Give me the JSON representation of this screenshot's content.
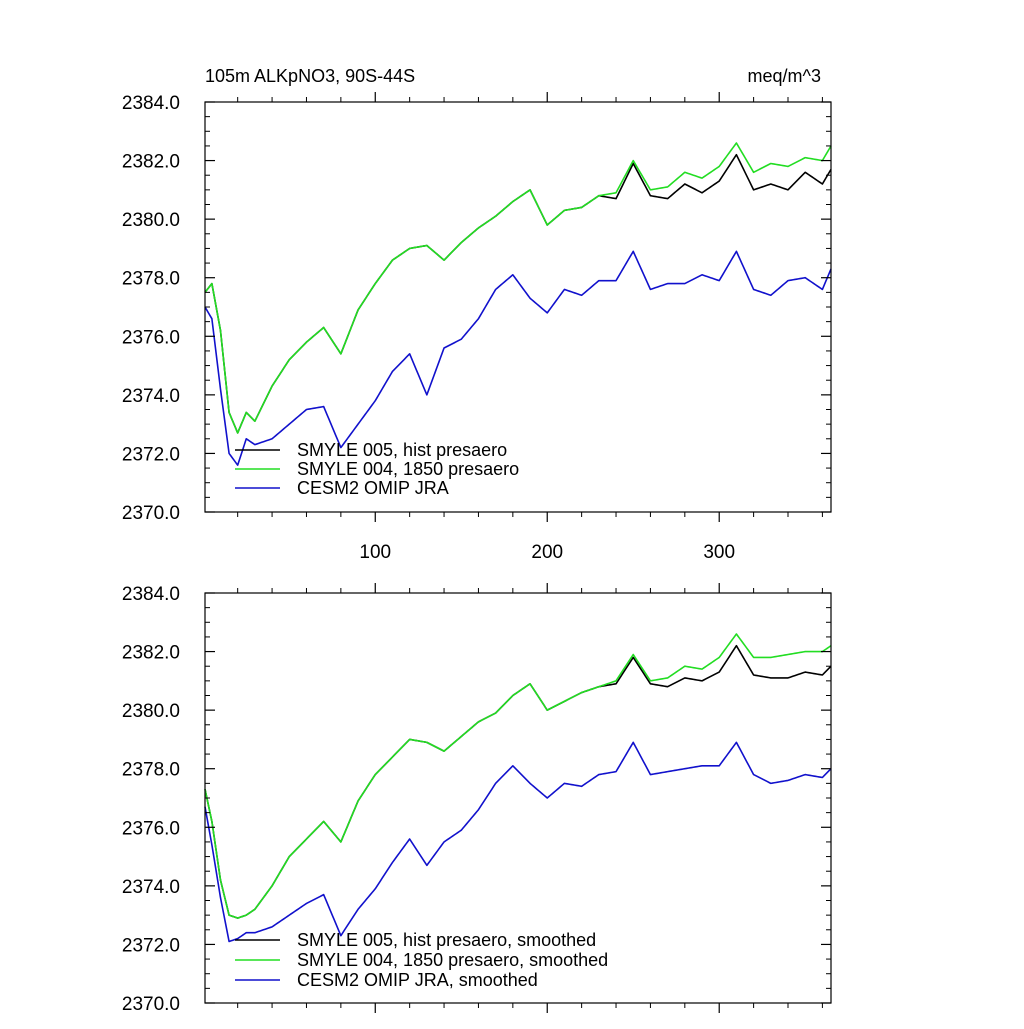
{
  "figure": {
    "title_left": "105m ALKpNO3, 90S-44S",
    "title_right": "meq/m^3"
  },
  "chart_data": [
    {
      "type": "line",
      "title": "105m ALKpNO3, 90S-44S",
      "units": "meq/m^3",
      "xlim": [
        1,
        365
      ],
      "ylim": [
        2370.0,
        2384.0
      ],
      "x_ticks": [
        100,
        200,
        300
      ],
      "x_tick_labels": [
        "100",
        "200",
        "300"
      ],
      "y_ticks": [
        2370.0,
        2372.0,
        2374.0,
        2376.0,
        2378.0,
        2380.0,
        2382.0,
        2384.0
      ],
      "y_tick_labels": [
        "2370.0",
        "2372.0",
        "2374.0",
        "2376.0",
        "2378.0",
        "2380.0",
        "2382.0",
        "2384.0"
      ],
      "legend_position": "bottom-left",
      "grid": false,
      "x": [
        1,
        5,
        10,
        15,
        20,
        25,
        30,
        40,
        50,
        60,
        70,
        80,
        90,
        100,
        110,
        120,
        130,
        140,
        150,
        160,
        170,
        180,
        190,
        200,
        210,
        220,
        230,
        240,
        250,
        260,
        270,
        280,
        290,
        300,
        310,
        320,
        330,
        340,
        350,
        360,
        365
      ],
      "series": [
        {
          "name": "SMYLE 005, hist presaero",
          "color": "#000000",
          "values": [
            2377.5,
            2377.8,
            2376.2,
            2373.4,
            2372.7,
            2373.4,
            2373.1,
            2374.3,
            2375.2,
            2375.8,
            2376.3,
            2375.4,
            2376.9,
            2377.8,
            2378.6,
            2379.0,
            2379.1,
            2378.6,
            2379.2,
            2379.7,
            2380.1,
            2380.6,
            2381.0,
            2379.8,
            2380.3,
            2380.4,
            2380.8,
            2380.7,
            2381.9,
            2380.8,
            2380.7,
            2381.2,
            2380.9,
            2381.3,
            2382.2,
            2381.0,
            2381.2,
            2381.0,
            2381.6,
            2381.2,
            2381.7
          ]
        },
        {
          "name": "SMYLE 004, 1850 presaero",
          "color": "#22dd22",
          "values": [
            2377.5,
            2377.8,
            2376.2,
            2373.4,
            2372.7,
            2373.4,
            2373.1,
            2374.3,
            2375.2,
            2375.8,
            2376.3,
            2375.4,
            2376.9,
            2377.8,
            2378.6,
            2379.0,
            2379.1,
            2378.6,
            2379.2,
            2379.7,
            2380.1,
            2380.6,
            2381.0,
            2379.8,
            2380.3,
            2380.4,
            2380.8,
            2380.9,
            2382.0,
            2381.0,
            2381.1,
            2381.6,
            2381.4,
            2381.8,
            2382.6,
            2381.6,
            2381.9,
            2381.8,
            2382.1,
            2382.0,
            2382.5
          ]
        },
        {
          "name": "CESM2 OMIP JRA",
          "color": "#1111cc",
          "values": [
            2377.0,
            2376.6,
            2374.2,
            2372.0,
            2371.6,
            2372.5,
            2372.3,
            2372.5,
            2373.0,
            2373.5,
            2373.6,
            2372.2,
            2373.0,
            2373.8,
            2374.8,
            2375.4,
            2374.0,
            2375.6,
            2375.9,
            2376.6,
            2377.6,
            2378.1,
            2377.3,
            2376.8,
            2377.6,
            2377.4,
            2377.9,
            2377.9,
            2378.9,
            2377.6,
            2377.8,
            2377.8,
            2378.1,
            2377.9,
            2378.9,
            2377.6,
            2377.4,
            2377.9,
            2378.0,
            2377.6,
            2378.3
          ]
        }
      ]
    },
    {
      "type": "line",
      "xlim": [
        1,
        365
      ],
      "ylim": [
        2370.0,
        2384.0
      ],
      "x_ticks": [
        100,
        200,
        300
      ],
      "x_tick_labels": [
        "",
        "",
        ""
      ],
      "y_ticks": [
        2370.0,
        2372.0,
        2374.0,
        2376.0,
        2378.0,
        2380.0,
        2382.0,
        2384.0
      ],
      "y_tick_labels": [
        "2370.0",
        "2372.0",
        "2374.0",
        "2376.0",
        "2378.0",
        "2380.0",
        "2382.0",
        "2384.0"
      ],
      "legend_position": "bottom-left",
      "grid": false,
      "x": [
        1,
        5,
        10,
        15,
        20,
        25,
        30,
        40,
        50,
        60,
        70,
        80,
        90,
        100,
        110,
        120,
        130,
        140,
        150,
        160,
        170,
        180,
        190,
        200,
        210,
        220,
        230,
        240,
        250,
        260,
        270,
        280,
        290,
        300,
        310,
        320,
        330,
        340,
        350,
        360,
        365
      ],
      "series": [
        {
          "name": "SMYLE 005, hist presaero, smoothed",
          "color": "#000000",
          "values": [
            2377.3,
            2376.2,
            2374.2,
            2373.0,
            2372.9,
            2373.0,
            2373.2,
            2374.0,
            2375.0,
            2375.6,
            2376.2,
            2375.5,
            2376.9,
            2377.8,
            2378.4,
            2379.0,
            2378.9,
            2378.6,
            2379.1,
            2379.6,
            2379.9,
            2380.5,
            2380.9,
            2380.0,
            2380.3,
            2380.6,
            2380.8,
            2380.9,
            2381.8,
            2380.9,
            2380.8,
            2381.1,
            2381.0,
            2381.3,
            2382.2,
            2381.2,
            2381.1,
            2381.1,
            2381.3,
            2381.2,
            2381.5
          ]
        },
        {
          "name": "SMYLE 004, 1850 presaero, smoothed",
          "color": "#22dd22",
          "values": [
            2377.3,
            2376.2,
            2374.2,
            2373.0,
            2372.9,
            2373.0,
            2373.2,
            2374.0,
            2375.0,
            2375.6,
            2376.2,
            2375.5,
            2376.9,
            2377.8,
            2378.4,
            2379.0,
            2378.9,
            2378.6,
            2379.1,
            2379.6,
            2379.9,
            2380.5,
            2380.9,
            2380.0,
            2380.3,
            2380.6,
            2380.8,
            2381.0,
            2381.9,
            2381.0,
            2381.1,
            2381.5,
            2381.4,
            2381.8,
            2382.6,
            2381.8,
            2381.8,
            2381.9,
            2382.0,
            2382.0,
            2382.2
          ]
        },
        {
          "name": "CESM2 OMIP JRA, smoothed",
          "color": "#1111cc",
          "values": [
            2376.7,
            2375.4,
            2373.6,
            2372.1,
            2372.2,
            2372.4,
            2372.4,
            2372.6,
            2373.0,
            2373.4,
            2373.7,
            2372.3,
            2373.2,
            2373.9,
            2374.8,
            2375.6,
            2374.7,
            2375.5,
            2375.9,
            2376.6,
            2377.5,
            2378.1,
            2377.5,
            2377.0,
            2377.5,
            2377.4,
            2377.8,
            2377.9,
            2378.9,
            2377.8,
            2377.9,
            2378.0,
            2378.1,
            2378.1,
            2378.9,
            2377.8,
            2377.5,
            2377.6,
            2377.8,
            2377.7,
            2378.0
          ]
        }
      ]
    }
  ]
}
